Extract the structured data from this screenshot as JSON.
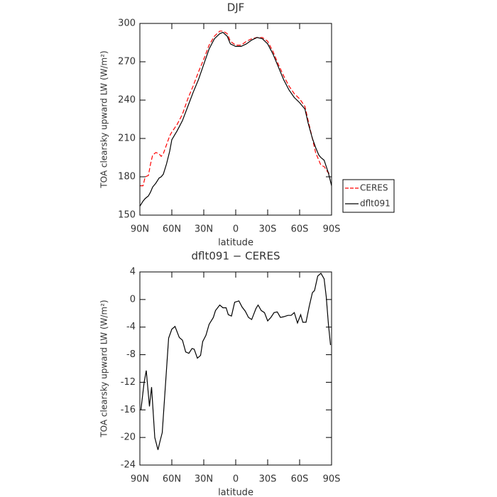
{
  "chart_data": [
    {
      "type": "line",
      "title": "DJF",
      "y_label": "TOA clearsky upward LW (W/m²)",
      "x_label": "latitude",
      "x": [
        90,
        87,
        85,
        82,
        80,
        78,
        75,
        72,
        70,
        68,
        65,
        62,
        60,
        55,
        50,
        45,
        40,
        35,
        30,
        25,
        20,
        15,
        12,
        8,
        5,
        0,
        -5,
        -10,
        -15,
        -20,
        -25,
        -30,
        -35,
        -40,
        -45,
        -50,
        -55,
        -60,
        -65,
        -68,
        -72,
        -75,
        -78,
        -80,
        -83,
        -87,
        -90
      ],
      "series": [
        {
          "name": "CERES",
          "color": "#ff0000",
          "dashed": true,
          "values": [
            173,
            173,
            180,
            181,
            190,
            197,
            199,
            198,
            196,
            198,
            205,
            212,
            215,
            221,
            229,
            241,
            251,
            262,
            272,
            283,
            290,
            294,
            294,
            292,
            286,
            283,
            283,
            286,
            288,
            289,
            289,
            286,
            278,
            268,
            259,
            251,
            245,
            241,
            235,
            224,
            210,
            199,
            193,
            189,
            188,
            183,
            182
          ]
        },
        {
          "name": "dflt091",
          "color": "#000000",
          "dashed": false,
          "values": [
            157,
            161,
            163,
            165,
            168,
            172,
            175,
            179,
            180,
            182,
            190,
            200,
            209,
            216,
            224,
            235,
            246,
            256,
            268,
            280,
            288,
            292,
            293,
            290,
            284,
            282,
            282,
            284,
            287,
            289,
            288,
            284,
            276,
            266,
            256,
            248,
            242,
            238,
            233,
            222,
            210,
            203,
            197,
            195,
            193,
            183,
            173
          ]
        }
      ],
      "xlim": [
        90,
        -90
      ],
      "xticks": [
        {
          "value": 90,
          "label": "90N"
        },
        {
          "value": 60,
          "label": "60N"
        },
        {
          "value": 30,
          "label": "30N"
        },
        0,
        {
          "value": -30,
          "label": "30S"
        },
        {
          "value": -60,
          "label": "60S"
        },
        {
          "value": -90,
          "label": "90S"
        }
      ],
      "ylim": [
        150,
        300
      ],
      "yticks": [
        150,
        180,
        210,
        240,
        270,
        300
      ],
      "legend": "right"
    },
    {
      "type": "line",
      "title": "dflt091 − CERES",
      "y_label": "TOA clearsky upward LW (W/m²)",
      "x_label": "latitude",
      "x": [
        89,
        86,
        84,
        81,
        79,
        76,
        73,
        71,
        69,
        63,
        60,
        57,
        53,
        50,
        47,
        44,
        41,
        39,
        36,
        33,
        31,
        28,
        25,
        21,
        19,
        15,
        12,
        9,
        7,
        4,
        1,
        -3,
        -6,
        -9,
        -12,
        -15,
        -19,
        -21,
        -24,
        -27,
        -30,
        -33,
        -36,
        -39,
        -42,
        -45,
        -49,
        -52,
        -55,
        -58,
        -61,
        -63,
        -66,
        -69,
        -72,
        -74,
        -77,
        -80,
        -83,
        -85,
        -87,
        -89
      ],
      "values": [
        -16,
        -12,
        -10.3,
        -15.5,
        -12.7,
        -20,
        -21.8,
        -20.5,
        -19.3,
        -5.6,
        -4.3,
        -3.9,
        -5.5,
        -5.9,
        -7.6,
        -7.8,
        -7.1,
        -7.2,
        -8.5,
        -8.1,
        -6.1,
        -5.2,
        -3.6,
        -2.6,
        -1.6,
        -0.8,
        -1.2,
        -1.2,
        -2.2,
        -2.4,
        -0.4,
        -0.2,
        -1.1,
        -1.7,
        -2.6,
        -2.9,
        -1.3,
        -0.8,
        -1.6,
        -1.9,
        -3.1,
        -2.6,
        -1.9,
        -1.8,
        -2.6,
        -2.5,
        -2.3,
        -2.3,
        -1.9,
        -3.4,
        -2.2,
        -3.3,
        -3.3,
        -1.0,
        1.0,
        1.3,
        3.4,
        3.8,
        3.0,
        0.4,
        -3.5,
        -6.6
      ],
      "color": "#000000",
      "xlim": [
        90,
        -90
      ],
      "xticks": [
        {
          "value": 90,
          "label": "90N"
        },
        {
          "value": 60,
          "label": "60N"
        },
        {
          "value": 30,
          "label": "30N"
        },
        0,
        {
          "value": -30,
          "label": "30S"
        },
        {
          "value": -60,
          "label": "60S"
        },
        {
          "value": -90,
          "label": "90S"
        }
      ],
      "ylim": [
        -24,
        4
      ],
      "yticks": [
        -24,
        -20,
        -16,
        -12,
        -8,
        -4,
        0,
        4
      ]
    }
  ]
}
